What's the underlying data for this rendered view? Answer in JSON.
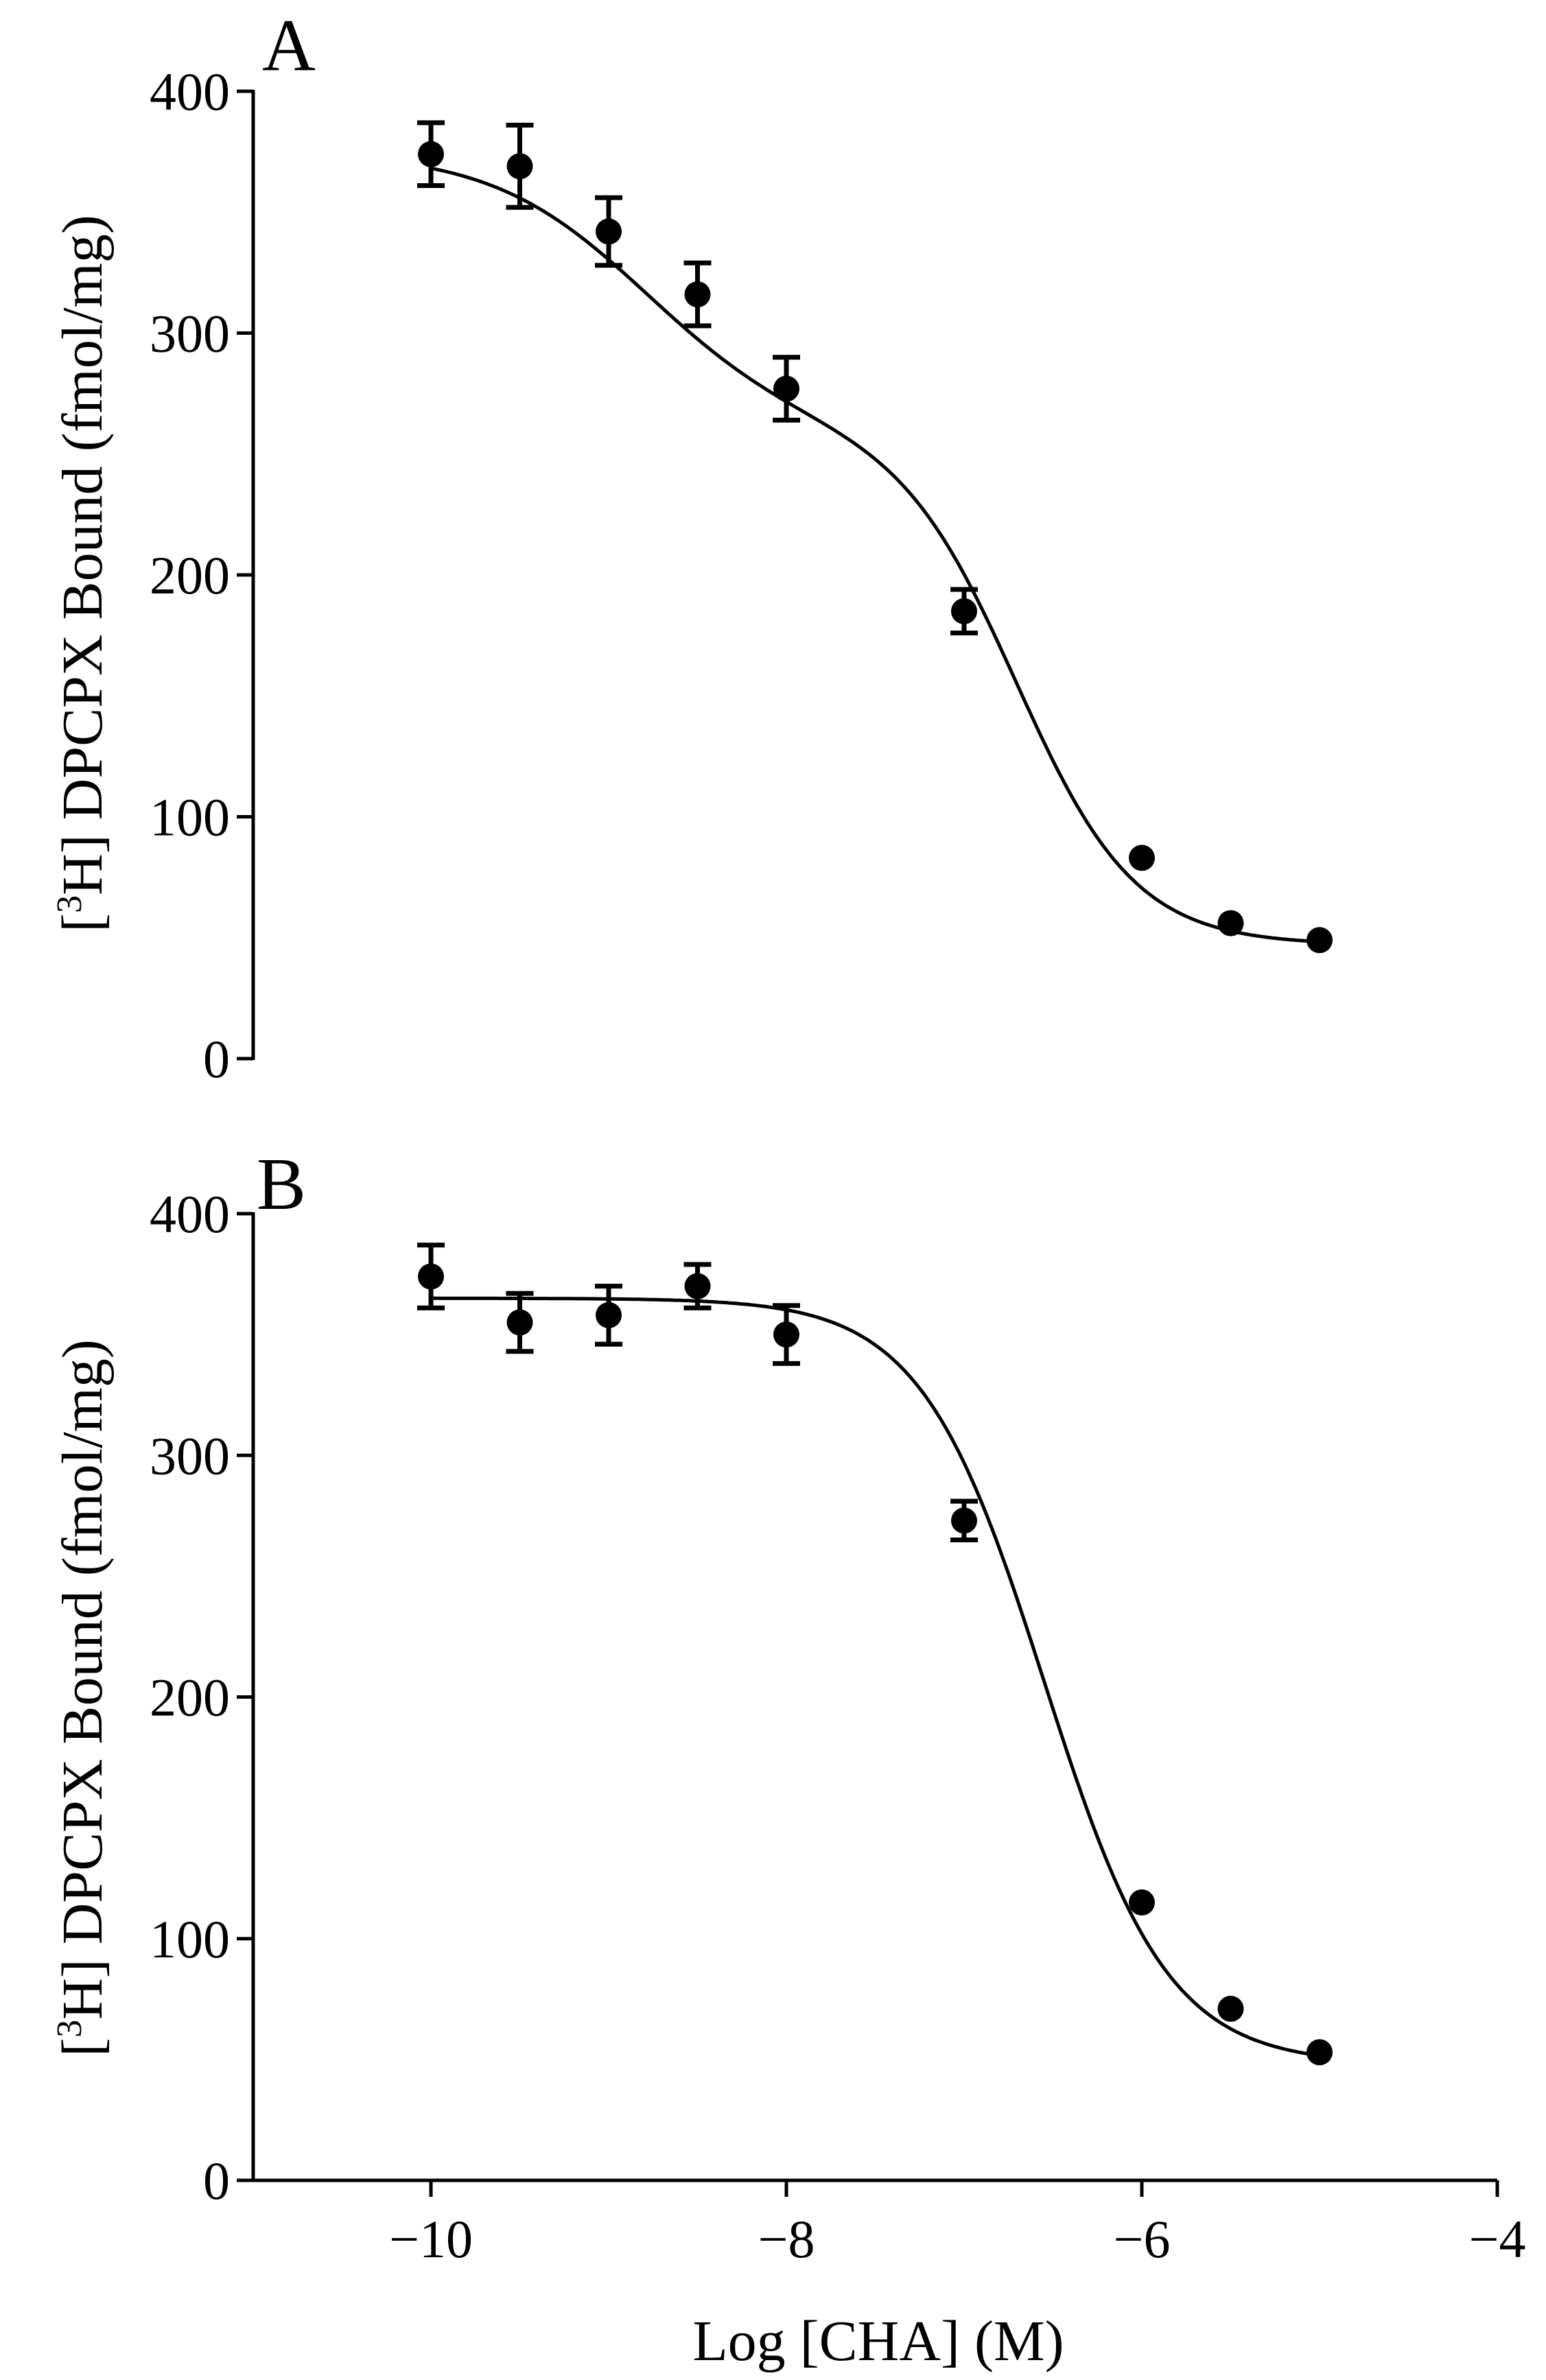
{
  "chart_data": [
    {
      "type": "scatter",
      "panel_label": "A",
      "ylabel_prefix": "[",
      "ylabel_sup": "3",
      "ylabel_suffix": "H] DPCPX Bound (fmol/mg)",
      "xlim": [
        -11,
        -4
      ],
      "ylim": [
        0,
        400
      ],
      "yticks": [
        "0",
        "100",
        "200",
        "300",
        "400"
      ],
      "grid": false,
      "series": [
        {
          "x": [
            -10,
            -9.5,
            -9,
            -8.5,
            -8,
            -7,
            -6,
            -5.5,
            -5
          ],
          "y": [
            374,
            369,
            342,
            316,
            277,
            185,
            83,
            56,
            49
          ],
          "err": [
            13,
            17,
            14,
            13,
            13,
            9,
            0,
            0,
            0
          ]
        }
      ],
      "fit": {
        "model": "two-site",
        "top": 375,
        "bottom": 47,
        "frac_high": 0.35,
        "log_ic50_high": -8.8,
        "log_ic50_low": -6.7,
        "hill_high": 1.0,
        "hill_low": 1.3
      }
    },
    {
      "type": "scatter",
      "panel_label": "B",
      "ylabel_prefix": "[",
      "ylabel_sup": "3",
      "ylabel_suffix": "H] DPCPX Bound (fmol/mg)",
      "xlabel": "Log [CHA] (M)",
      "xlim": [
        -11,
        -4
      ],
      "ylim": [
        0,
        400
      ],
      "xticks": [
        "−10",
        "−8",
        "−6",
        "−4"
      ],
      "yticks": [
        "0",
        "100",
        "200",
        "300",
        "400"
      ],
      "grid": false,
      "series": [
        {
          "x": [
            -10,
            -9.5,
            -9,
            -8.5,
            -8,
            -7,
            -6,
            -5.5,
            -5
          ],
          "y": [
            374,
            355,
            358,
            370,
            350,
            273,
            115,
            71,
            53
          ],
          "err": [
            13,
            12,
            12,
            9,
            12,
            8,
            0,
            0,
            0
          ]
        }
      ],
      "fit": {
        "model": "one-site",
        "top": 365,
        "bottom": 48,
        "log_ic50": -6.55,
        "hill": 1.25
      }
    }
  ]
}
